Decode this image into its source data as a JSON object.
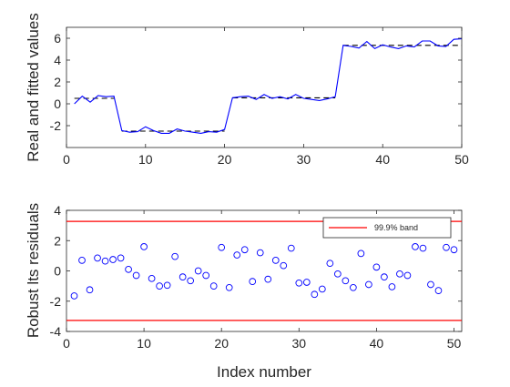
{
  "chart_data": [
    {
      "type": "line",
      "ylabel": "Real and fitted values",
      "xlim": [
        0,
        50
      ],
      "ylim": [
        -4,
        7
      ],
      "xticks": [
        0,
        10,
        20,
        30,
        40,
        50
      ],
      "yticks": [
        -2,
        0,
        2,
        4,
        6
      ],
      "grid": false,
      "series": [
        {
          "role": "real",
          "color": "#0000ff",
          "style": "solid",
          "x": [
            1,
            2,
            3,
            4,
            5,
            6,
            7,
            8,
            9,
            10,
            11,
            12,
            13,
            14,
            15,
            16,
            17,
            18,
            19,
            20,
            21,
            22,
            23,
            24,
            25,
            26,
            27,
            28,
            29,
            30,
            31,
            32,
            33,
            34,
            35,
            36,
            37,
            38,
            39,
            40,
            41,
            42,
            43,
            44,
            45,
            46,
            47,
            48,
            49,
            50
          ],
          "y": [
            0.0,
            0.7,
            0.15,
            0.75,
            0.65,
            0.7,
            -2.45,
            -2.6,
            -2.55,
            -2.1,
            -2.45,
            -2.7,
            -2.7,
            -2.3,
            -2.5,
            -2.6,
            -2.7,
            -2.55,
            -2.6,
            -2.35,
            0.55,
            0.65,
            0.7,
            0.4,
            0.85,
            0.5,
            0.65,
            0.45,
            0.85,
            0.5,
            0.4,
            0.3,
            0.45,
            0.65,
            5.35,
            5.25,
            5.1,
            5.7,
            5.05,
            5.4,
            5.2,
            5.05,
            5.3,
            5.2,
            5.75,
            5.75,
            5.3,
            5.25,
            5.9,
            5.95
          ]
        },
        {
          "role": "fitted",
          "color": "#000000",
          "style": "dashed",
          "segments": [
            {
              "x": [
                1,
                6
              ],
              "y": [
                0.5,
                0.5
              ]
            },
            {
              "x": [
                7,
                20
              ],
              "y": [
                -2.5,
                -2.5
              ]
            },
            {
              "x": [
                21,
                34
              ],
              "y": [
                0.55,
                0.55
              ]
            },
            {
              "x": [
                35,
                50
              ],
              "y": [
                5.35,
                5.35
              ]
            }
          ]
        }
      ]
    },
    {
      "type": "scatter",
      "xlabel": "Index number",
      "ylabel": "Robust lts residuals",
      "xlim": [
        0,
        51
      ],
      "ylim": [
        -4,
        4
      ],
      "xticks": [
        0,
        10,
        20,
        30,
        40,
        50
      ],
      "yticks": [
        -4,
        -2,
        0,
        2,
        4
      ],
      "grid": false,
      "band": {
        "label": "99.9% band",
        "upper": 3.27,
        "lower": -3.27,
        "color": "#ff0000"
      },
      "legend_position": "top-right",
      "series": [
        {
          "role": "residuals",
          "color": "#0000ff",
          "marker": "circle",
          "x": [
            1,
            2,
            3,
            4,
            5,
            6,
            7,
            8,
            9,
            10,
            11,
            12,
            13,
            14,
            15,
            16,
            17,
            18,
            19,
            20,
            21,
            22,
            23,
            24,
            25,
            26,
            27,
            28,
            29,
            30,
            31,
            32,
            33,
            34,
            35,
            36,
            37,
            38,
            39,
            40,
            41,
            42,
            43,
            44,
            45,
            46,
            47,
            48,
            49,
            50
          ],
          "y": [
            -1.65,
            0.7,
            -1.25,
            0.85,
            0.65,
            0.75,
            0.85,
            0.1,
            -0.3,
            1.6,
            -0.5,
            -1.0,
            -0.95,
            0.95,
            -0.4,
            -0.65,
            0.0,
            -0.3,
            -1.0,
            1.55,
            -1.1,
            1.05,
            1.4,
            -0.7,
            1.2,
            -0.55,
            0.7,
            0.35,
            1.5,
            -0.8,
            -0.75,
            -1.55,
            -1.2,
            0.5,
            -0.2,
            -0.65,
            -1.1,
            1.15,
            -0.9,
            0.25,
            -0.4,
            -1.05,
            -0.2,
            -0.3,
            1.6,
            1.5,
            -0.9,
            -1.3,
            1.55,
            1.4
          ]
        }
      ]
    }
  ]
}
